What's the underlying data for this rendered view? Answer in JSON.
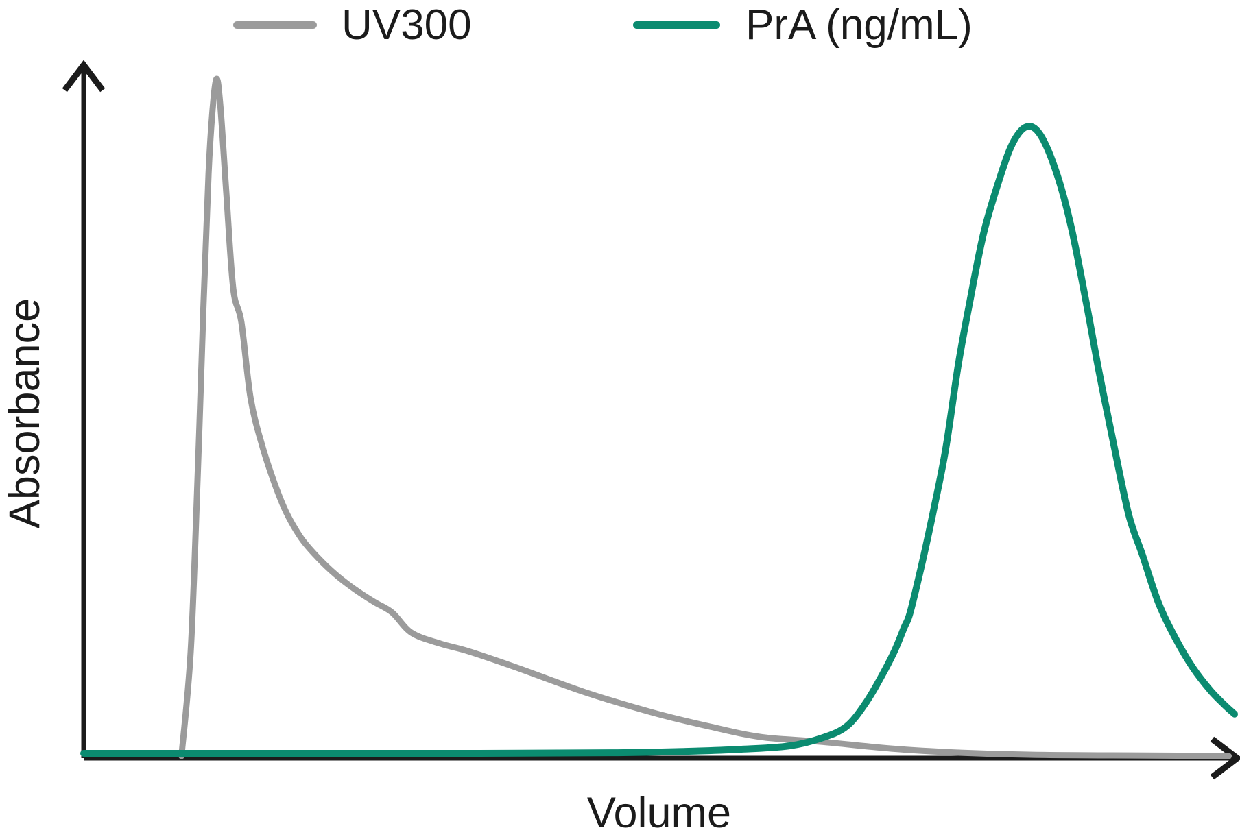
{
  "chart_data": {
    "type": "line",
    "title": "",
    "xlabel": "Volume",
    "ylabel": "Absorbance",
    "xlim": [
      0,
      100
    ],
    "ylim": [
      0,
      1.05
    ],
    "grid": false,
    "ticks": "none",
    "axes_arrowheads": true,
    "legend_position": "top",
    "axis_color": "#1b1b1b",
    "background_color": "#ffffff",
    "series": [
      {
        "name": "UV300",
        "color": "#9b9b9b",
        "stroke_width": 9,
        "points": [
          [
            8.5,
            0.0
          ],
          [
            9.3,
            0.155
          ],
          [
            9.9,
            0.41
          ],
          [
            10.4,
            0.66
          ],
          [
            10.85,
            0.86
          ],
          [
            11.2,
            0.954
          ],
          [
            11.56,
            1.0
          ],
          [
            11.9,
            0.955
          ],
          [
            12.4,
            0.83
          ],
          [
            13.0,
            0.69
          ],
          [
            13.7,
            0.641
          ],
          [
            14.5,
            0.529
          ],
          [
            15.5,
            0.459
          ],
          [
            16.6,
            0.402
          ],
          [
            17.6,
            0.36
          ],
          [
            18.9,
            0.322
          ],
          [
            20.3,
            0.294
          ],
          [
            21.9,
            0.268
          ],
          [
            23.5,
            0.247
          ],
          [
            25.2,
            0.228
          ],
          [
            26.8,
            0.212
          ],
          [
            28.5,
            0.182
          ],
          [
            31.0,
            0.166
          ],
          [
            33.4,
            0.155
          ],
          [
            37.4,
            0.132
          ],
          [
            43.6,
            0.094
          ],
          [
            49.5,
            0.064
          ],
          [
            54.3,
            0.044
          ],
          [
            58.9,
            0.028
          ],
          [
            64.2,
            0.021
          ],
          [
            70.2,
            0.011
          ],
          [
            76.2,
            0.005
          ],
          [
            82.1,
            0.002
          ],
          [
            89.3,
            0.001
          ],
          [
            99.5,
            0.0
          ]
        ]
      },
      {
        "name": "PrA (ng/mL)",
        "color": "#0b8b70",
        "stroke_width": 10,
        "points": [
          [
            0.0,
            0.004
          ],
          [
            16.6,
            0.004
          ],
          [
            34.4,
            0.004
          ],
          [
            46.4,
            0.005
          ],
          [
            52.3,
            0.007
          ],
          [
            57.1,
            0.01
          ],
          [
            61.3,
            0.015
          ],
          [
            64.2,
            0.027
          ],
          [
            66.3,
            0.044
          ],
          [
            67.9,
            0.077
          ],
          [
            69.2,
            0.114
          ],
          [
            70.4,
            0.153
          ],
          [
            71.3,
            0.19
          ],
          [
            71.8,
            0.211
          ],
          [
            72.8,
            0.281
          ],
          [
            73.8,
            0.359
          ],
          [
            74.9,
            0.453
          ],
          [
            76.0,
            0.578
          ],
          [
            77.0,
            0.671
          ],
          [
            78.2,
            0.772
          ],
          [
            79.5,
            0.848
          ],
          [
            80.7,
            0.904
          ],
          [
            81.9,
            0.929
          ],
          [
            83.1,
            0.918
          ],
          [
            84.5,
            0.863
          ],
          [
            85.8,
            0.782
          ],
          [
            87.1,
            0.671
          ],
          [
            88.2,
            0.57
          ],
          [
            89.4,
            0.469
          ],
          [
            90.8,
            0.357
          ],
          [
            92.0,
            0.297
          ],
          [
            93.4,
            0.226
          ],
          [
            94.9,
            0.173
          ],
          [
            96.4,
            0.13
          ],
          [
            97.9,
            0.097
          ],
          [
            99.1,
            0.076
          ],
          [
            100.0,
            0.062
          ]
        ]
      }
    ]
  },
  "legend": {
    "items": [
      {
        "label": "UV300",
        "color": "#9b9b9b"
      },
      {
        "label": "PrA (ng/mL)",
        "color": "#0b8b70"
      }
    ]
  },
  "axes": {
    "x_label": "Volume",
    "y_label": "Absorbance"
  }
}
